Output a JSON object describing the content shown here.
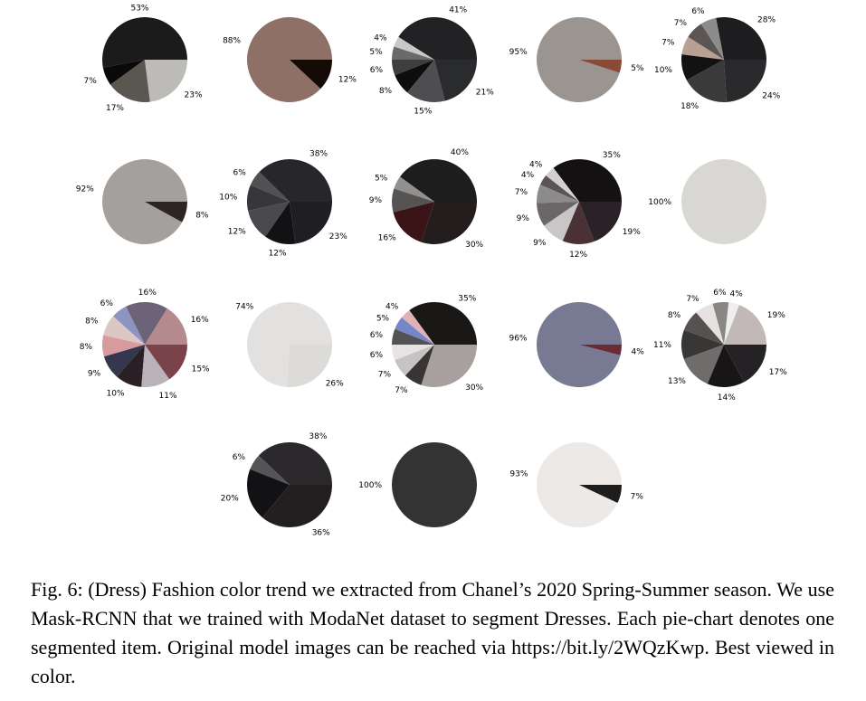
{
  "caption": "Fig. 6: (Dress) Fashion color trend we extracted from Chanel’s 2020 Spring-Summer season. We use Mask-RCNN that we trained with ModaNet dataset to segment Dresses. Each pie-chart denotes one segmented item. Original model images can be reached via https://bit.ly/2WQzKwp. Best viewed in color.",
  "chart_data": [
    {
      "type": "pie",
      "values": [
        53,
        7,
        17,
        23
      ],
      "labels": [
        "53%",
        "7%",
        "17%",
        "23%"
      ],
      "colors": [
        "#1b1b1b",
        "#0a0a0a",
        "#5a5650",
        "#bdbbb8"
      ]
    },
    {
      "type": "pie",
      "values": [
        88,
        12
      ],
      "labels": [
        "88%",
        "12%"
      ],
      "colors": [
        "#8e7066",
        "#150a06"
      ]
    },
    {
      "type": "pie",
      "values": [
        41,
        4,
        5,
        6,
        8,
        15,
        21
      ],
      "labels": [
        "41%",
        "4%",
        "5%",
        "6%",
        "8%",
        "15%",
        "21%"
      ],
      "colors": [
        "#222224",
        "#c9c8c6",
        "#6b6a68",
        "#3f3e3c",
        "#0d0d0d",
        "#4e4e50",
        "#2a2b2d"
      ]
    },
    {
      "type": "pie",
      "values": [
        95,
        5
      ],
      "labels": [
        "95%",
        "5%"
      ],
      "colors": [
        "#9a9590",
        "#8a4a38"
      ]
    },
    {
      "type": "pie",
      "values": [
        28,
        6,
        7,
        7,
        10,
        18,
        24
      ],
      "labels": [
        "28%",
        "6%",
        "7%",
        "7%",
        "10%",
        "18%",
        "24%"
      ],
      "colors": [
        "#1d1d1f",
        "#8e8c8b",
        "#5b5654",
        "#b9a095",
        "#121212",
        "#3a3a3b",
        "#2a2a2c"
      ]
    },
    {
      "type": "pie",
      "values": [
        92,
        8
      ],
      "labels": [
        "92%",
        "8%"
      ],
      "colors": [
        "#a3a09d",
        "#2b2523"
      ]
    },
    {
      "type": "pie",
      "values": [
        38,
        6,
        10,
        12,
        12,
        23
      ],
      "labels": [
        "38%",
        "6%",
        "10%",
        "12%",
        "12%",
        "23%"
      ],
      "colors": [
        "#26262b",
        "#515154",
        "#36363b",
        "#4a4a4e",
        "#121215",
        "#1f1f23"
      ]
    },
    {
      "type": "pie",
      "values": [
        40,
        5,
        9,
        16,
        30
      ],
      "labels": [
        "40%",
        "5%",
        "9%",
        "16%",
        "30%"
      ],
      "colors": [
        "#1e1d1e",
        "#939190",
        "#565453",
        "#3a1416",
        "#231d1d"
      ]
    },
    {
      "type": "pie",
      "values": [
        35,
        4,
        4,
        7,
        9,
        9,
        12,
        19
      ],
      "labels": [
        "35%",
        "4%",
        "4%",
        "7%",
        "9%",
        "9%",
        "12%",
        "19%"
      ],
      "colors": [
        "#141112",
        "#d3cfcf",
        "#5a5456",
        "#8d8a8b",
        "#6b6668",
        "#c9c6c7",
        "#4a3136",
        "#2a2226"
      ]
    },
    {
      "type": "pie",
      "values": [
        100
      ],
      "labels": [
        "100%"
      ],
      "colors": [
        "#d8d7d3"
      ]
    },
    {
      "type": "pie",
      "values": [
        16,
        16,
        6,
        8,
        8,
        9,
        10,
        11,
        15
      ],
      "labels": [
        "16%",
        "16%",
        "6%",
        "8%",
        "8%",
        "9%",
        "10%",
        "11%",
        "15%"
      ],
      "colors": [
        "#b58a8e",
        "#6c6378",
        "#8c94c2",
        "#dcc7c4",
        "#d79b9f",
        "#34374d",
        "#2a1f25",
        "#b9b2b8",
        "#7a434a"
      ]
    },
    {
      "type": "pie",
      "values": [
        74,
        26
      ],
      "labels": [
        "74%",
        "26%"
      ],
      "colors": [
        "#e2e1df",
        "#dcdbd8"
      ]
    },
    {
      "type": "pie",
      "values": [
        35,
        4,
        5,
        6,
        6,
        7,
        7,
        30
      ],
      "labels": [
        "35%",
        "4%",
        "5%",
        "6%",
        "6%",
        "7%",
        "7%",
        "30%"
      ],
      "colors": [
        "#1a1816",
        "#e0b2b6",
        "#7587c9",
        "#535254",
        "#e8e3e3",
        "#c7c3c4",
        "#3a3535",
        "#a8a09e"
      ]
    },
    {
      "type": "pie",
      "values": [
        96,
        4
      ],
      "labels": [
        "96%",
        "4%"
      ],
      "colors": [
        "#787a93",
        "#6b2b32"
      ]
    },
    {
      "type": "pie",
      "values": [
        19,
        4,
        6,
        7,
        8,
        11,
        13,
        14,
        17
      ],
      "labels": [
        "19%",
        "4%",
        "6%",
        "7%",
        "8%",
        "11%",
        "13%",
        "14%",
        "17%"
      ],
      "colors": [
        "#c2b8b8",
        "#efeeee",
        "#8b8686",
        "#e7e1e1",
        "#565252",
        "#393636",
        "#6f6c6c",
        "#171516",
        "#242224"
      ]
    },
    {
      "type": "pie",
      "values": [
        38,
        6,
        20,
        36
      ],
      "labels": [
        "38%",
        "6%",
        "20%",
        "36%"
      ],
      "colors": [
        "#2b292c",
        "#555456",
        "#121113",
        "#231f20"
      ]
    },
    {
      "type": "pie",
      "values": [
        100
      ],
      "labels": [
        "100%"
      ],
      "colors": [
        "#333333"
      ]
    },
    {
      "type": "pie",
      "values": [
        93,
        7
      ],
      "labels": [
        "93%",
        "7%"
      ],
      "colors": [
        "#ece9e7",
        "#1d1d1d"
      ]
    }
  ]
}
